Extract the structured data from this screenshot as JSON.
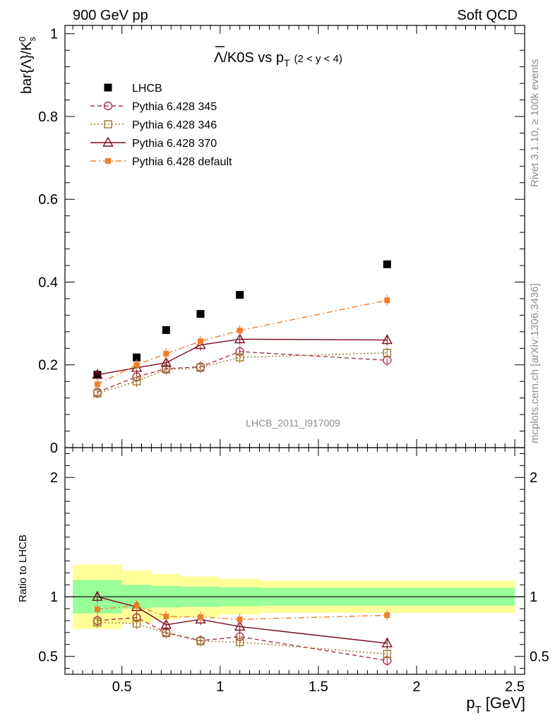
{
  "header": {
    "left_label": "900 GeV pp",
    "right_label": "Soft QCD"
  },
  "side_labels": {
    "rivet": "Rivet 3.1.10, ≥ 100k events",
    "mcplots": "mcplots.cern.ch [arXiv:1306.3436]"
  },
  "watermark": "LHCB_2011_I917009",
  "chart_data": {
    "type": "scatter",
    "title_parts": {
      "main": "Λ/K0S vs p",
      "sub": "T",
      "range": "(2 < y < 4)"
    },
    "ylabel": "bar{Λ}/K",
    "ylabel_sub": "s",
    "ylabel_sup": "0",
    "xlabel": "p",
    "xlabel_sub": "T",
    "xlabel_unit": "[GeV]",
    "ratio_ylabel": "Ratio to LHCB",
    "xlim": [
      0.21,
      2.55
    ],
    "ylim": [
      0,
      1.02
    ],
    "ratio_ylim": [
      0.35,
      2.25
    ],
    "x_ticks": [
      0.5,
      1,
      1.5,
      2,
      2.5
    ],
    "x_tick_labels": [
      "0.5",
      "1",
      "1.5",
      "2",
      "2.5"
    ],
    "y_ticks": [
      0,
      0.2,
      0.4,
      0.6,
      0.8,
      1
    ],
    "y_tick_labels": [
      "0",
      "0.2",
      "0.4",
      "0.6",
      "0.8",
      "1"
    ],
    "ratio_y_ticks": [
      0.5,
      1,
      2
    ],
    "ratio_y_tick_labels": [
      "0.5",
      "1",
      "2"
    ],
    "bins": [
      0.25,
      0.5,
      0.65,
      0.8,
      1.0,
      1.2,
      2.5
    ],
    "x": [
      0.375,
      0.575,
      0.725,
      0.9,
      1.1,
      1.85
    ],
    "band_inner_rel": [
      0.14,
      0.1,
      0.09,
      0.085,
      0.08,
      0.075
    ],
    "band_outer_rel": [
      0.27,
      0.22,
      0.19,
      0.17,
      0.15,
      0.135
    ],
    "series": [
      {
        "name": "LHCB",
        "color": "#000000",
        "marker": "square-filled",
        "line": "none",
        "values": [
          0.176,
          0.218,
          0.284,
          0.323,
          0.369,
          0.443
        ],
        "ratio": [
          1,
          1,
          1,
          1,
          1,
          1
        ]
      },
      {
        "name": "Pythia 6.428 345",
        "color": "#a8324a",
        "marker": "circle-open",
        "line": "dashed",
        "values": [
          0.134,
          0.171,
          0.191,
          0.195,
          0.232,
          0.211
        ],
        "ratio": [
          0.8,
          0.825,
          0.7,
          0.632,
          0.665,
          0.465
        ]
      },
      {
        "name": "Pythia 6.428 346",
        "color": "#a0782a",
        "marker": "square-open",
        "line": "dotted",
        "values": [
          0.131,
          0.16,
          0.189,
          0.193,
          0.218,
          0.229
        ],
        "ratio": [
          0.785,
          0.775,
          0.695,
          0.628,
          0.62,
          0.52
        ]
      },
      {
        "name": "Pythia 6.428 370",
        "color": "#7a0a1e",
        "marker": "triangle-open",
        "line": "solid",
        "values": [
          0.176,
          0.193,
          0.205,
          0.248,
          0.262,
          0.26
        ],
        "ratio": [
          1.0,
          0.915,
          0.765,
          0.81,
          0.75,
          0.61
        ]
      },
      {
        "name": "Pythia 6.428 default",
        "color": "#f47c2a",
        "marker": "square-small-filled",
        "line": "dashdot",
        "values": [
          0.153,
          0.2,
          0.227,
          0.257,
          0.283,
          0.356
        ],
        "ratio": [
          0.895,
          0.925,
          0.835,
          0.83,
          0.81,
          0.845
        ]
      }
    ]
  }
}
